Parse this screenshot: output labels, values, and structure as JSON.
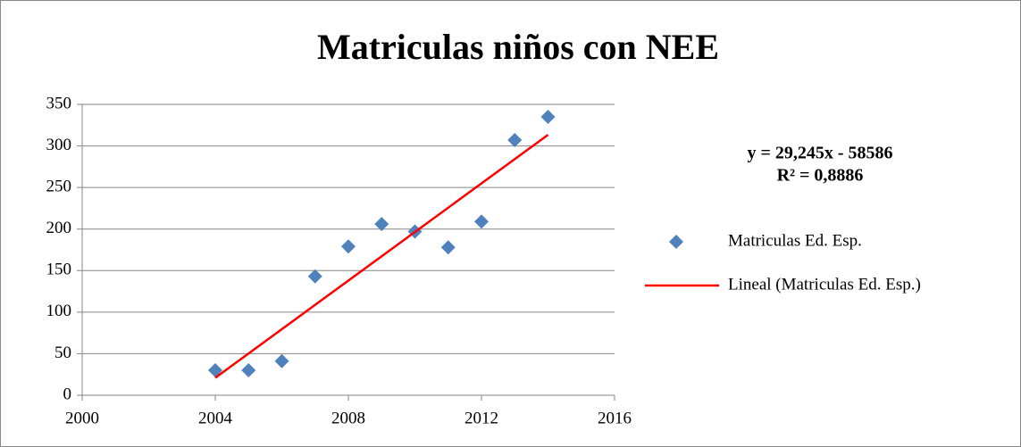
{
  "chart_data": {
    "type": "scatter",
    "title": "Matriculas niños con NEE",
    "x": [
      2004,
      2005,
      2006,
      2007,
      2008,
      2009,
      2010,
      2011,
      2012,
      2013,
      2014
    ],
    "series": [
      {
        "name": "Matriculas Ed. Esp.",
        "color": "#4f81bd",
        "values": [
          30,
          30,
          41,
          143,
          179,
          206,
          197,
          178,
          209,
          307,
          335
        ]
      }
    ],
    "trendline": {
      "name": "Lineal (Matriculas Ed. Esp.)",
      "color": "#ff0000",
      "x": [
        2004,
        2014
      ],
      "values": [
        21,
        313.4
      ],
      "equation": "y = 29,245x - 58586",
      "r_squared": "R² = 0,8886"
    },
    "xlim": [
      2000,
      2016
    ],
    "xticks": [
      2000,
      2004,
      2008,
      2012,
      2016
    ],
    "ylim": [
      0,
      350
    ],
    "yticks": [
      0,
      50,
      100,
      150,
      200,
      250,
      300,
      350
    ],
    "grid": true,
    "legend": "right"
  }
}
